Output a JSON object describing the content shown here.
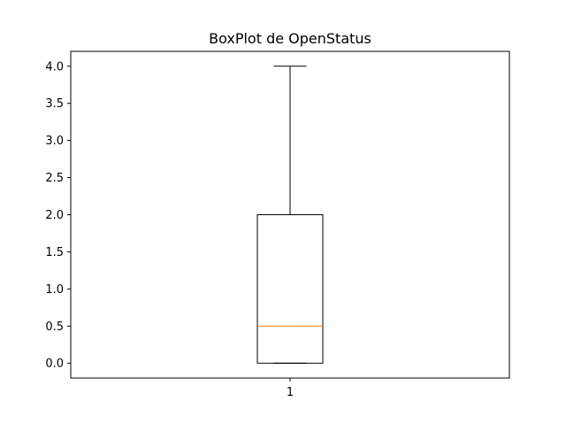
{
  "chart_data": {
    "type": "box",
    "title": "BoxPlot de OpenStatus",
    "xlabel": "",
    "ylabel": "",
    "categories": [
      "1"
    ],
    "series": [
      {
        "whisker_low": 0.0,
        "q1": 0.0,
        "median": 0.5,
        "q3": 2.0,
        "whisker_high": 4.0
      }
    ],
    "ylim": [
      -0.2,
      4.2
    ],
    "yticks": [
      "0.0",
      "0.5",
      "1.0",
      "1.5",
      "2.0",
      "2.5",
      "3.0",
      "3.5",
      "4.0"
    ],
    "grid": false,
    "colors": {
      "box": "#000000",
      "median": "#ff7f0e",
      "axes": "#000000"
    }
  }
}
